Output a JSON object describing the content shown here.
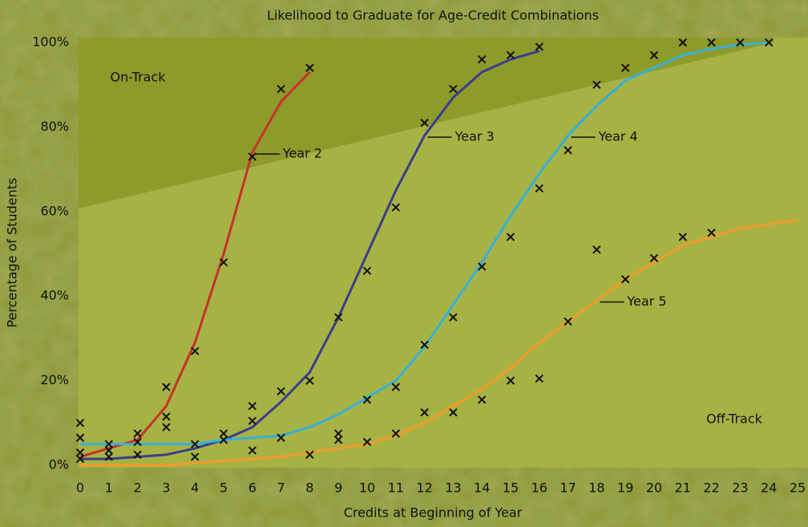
{
  "chart_data": {
    "type": "line",
    "title": "Likelihood to Graduate for Age-Credit Combinations",
    "x_label": "Credits at Beginning of Year",
    "y_label": "Percentage of Students",
    "annotations": [
      "On-Track",
      "Off-Track"
    ],
    "xlim": [
      0,
      25
    ],
    "xticks": [
      0,
      1,
      2,
      3,
      4,
      5,
      6,
      7,
      8,
      9,
      10,
      11,
      12,
      13,
      14,
      15,
      16,
      17,
      18,
      19,
      20,
      21,
      22,
      23,
      24,
      25
    ],
    "ylim": [
      0,
      100
    ],
    "yticks": [
      {
        "value": 0,
        "label": "0%"
      },
      {
        "value": 20,
        "label": "20%"
      },
      {
        "value": 40,
        "label": "40%"
      },
      {
        "value": 60,
        "label": "60%"
      },
      {
        "value": 80,
        "label": "80%"
      },
      {
        "value": 100,
        "label": "100%"
      }
    ],
    "series": [
      {
        "name": "Year 2",
        "color": "#c8302c",
        "x": [
          0,
          1,
          2,
          3,
          4,
          5,
          6,
          7,
          8
        ],
        "values": [
          2,
          4,
          6,
          14,
          29,
          50,
          74,
          86,
          93
        ]
      },
      {
        "name": "Year 3",
        "color": "#3b3c8c",
        "x": [
          0,
          1,
          2,
          3,
          4,
          5,
          6,
          7,
          8,
          9,
          10,
          11,
          12,
          13,
          14,
          15,
          16
        ],
        "values": [
          1.5,
          1.5,
          2,
          2.5,
          4,
          6,
          9,
          15,
          22,
          35,
          50,
          65,
          78,
          87,
          93,
          96,
          98
        ]
      },
      {
        "name": "Year 4",
        "color": "#35b0d8",
        "x": [
          0,
          1,
          2,
          3,
          4,
          5,
          6,
          7,
          8,
          9,
          10,
          11,
          12,
          13,
          14,
          15,
          16,
          17,
          18,
          19,
          20,
          21,
          22,
          23,
          24
        ],
        "values": [
          5,
          5,
          5,
          5,
          5,
          6,
          6.5,
          7,
          9,
          12,
          16,
          20,
          28,
          38,
          48,
          59,
          69,
          78,
          85,
          91,
          94,
          97,
          98.5,
          99.5,
          100
        ]
      },
      {
        "name": "Year 5",
        "color": "#f39a2a",
        "x": [
          0,
          1,
          2,
          3,
          4,
          5,
          6,
          7,
          8,
          9,
          10,
          11,
          12,
          13,
          14,
          15,
          16,
          17,
          18,
          19,
          20,
          21,
          22,
          23,
          24,
          25
        ],
        "values": [
          0,
          0,
          0,
          0,
          0.5,
          1,
          1.5,
          2,
          3,
          4,
          5,
          7,
          10,
          14,
          18,
          23,
          29,
          34,
          39,
          44,
          48,
          52,
          54,
          56,
          57,
          58
        ]
      }
    ],
    "scatter": {
      "color": "#111111",
      "x": [
        0,
        0,
        0,
        0,
        1,
        1,
        1,
        2,
        2,
        2,
        3,
        3,
        3,
        4,
        4,
        4,
        5,
        5,
        5,
        6,
        6,
        6,
        6,
        7,
        7,
        7,
        8,
        8,
        8,
        9,
        9,
        9,
        10,
        10,
        10,
        11,
        11,
        11,
        12,
        12,
        12,
        13,
        13,
        13,
        14,
        14,
        14,
        15,
        15,
        15,
        16,
        16,
        16,
        17,
        17,
        18,
        18,
        19,
        19,
        20,
        20,
        21,
        21,
        22,
        22,
        23,
        24
      ],
      "y": [
        10,
        6.5,
        3,
        1.5,
        5,
        3.5,
        2,
        7.5,
        5.5,
        2.5,
        18.5,
        11.5,
        9,
        27,
        5,
        2,
        7.5,
        6,
        48,
        73,
        14,
        10.5,
        3.5,
        89,
        17.5,
        6.5,
        94,
        20,
        2.5,
        35,
        7.5,
        6,
        46,
        15.5,
        5.5,
        61,
        18.5,
        7.5,
        81,
        28.5,
        12.5,
        89,
        35,
        12.5,
        96,
        47,
        15.5,
        97,
        54,
        20,
        99,
        65.5,
        20.5,
        74.5,
        34,
        90,
        51,
        94,
        44,
        97,
        49,
        100,
        54,
        100,
        55,
        100,
        100
      ]
    }
  }
}
